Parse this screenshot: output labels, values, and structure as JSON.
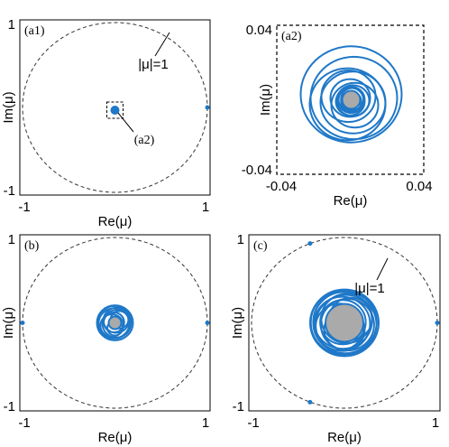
{
  "chart_data": [
    {
      "type": "scatter",
      "panel_label": "(a1)",
      "xlabel": "Re(μ)",
      "ylabel": "Im(μ)",
      "xlim": [
        -1,
        1
      ],
      "ylim": [
        -1,
        1
      ],
      "xticks": [
        -1,
        1
      ],
      "yticks": [
        -1,
        1
      ],
      "annotations": [
        "|μ|=1",
        "(a2)"
      ],
      "series": [
        {
          "color": "#1f78c8",
          "x": [
            1
          ],
          "y": [
            0
          ]
        }
      ]
    },
    {
      "type": "scatter",
      "panel_label": "(a2)",
      "xlabel": "Re(μ)",
      "ylabel": "Im(μ)",
      "xlim": [
        -0.04,
        0.04
      ],
      "ylim": [
        -0.04,
        0.04
      ],
      "xticks": [
        -0.04,
        0.04
      ],
      "yticks": [
        -0.04,
        0.04
      ],
      "annotations": [],
      "series": []
    },
    {
      "type": "scatter",
      "panel_label": "(b)",
      "xlabel": "Re(μ)",
      "ylabel": "Im(μ)",
      "xlim": [
        -1,
        1
      ],
      "ylim": [
        -1,
        1
      ],
      "xticks": [
        -1,
        1
      ],
      "yticks": [
        -1,
        1
      ],
      "annotations": [],
      "series": [
        {
          "color": "#1f78c8",
          "x": [
            -1,
            1
          ],
          "y": [
            0,
            0
          ]
        }
      ]
    },
    {
      "type": "scatter",
      "panel_label": "(c)",
      "xlabel": "Re(μ)",
      "ylabel": "Im(μ)",
      "xlim": [
        -1,
        1
      ],
      "ylim": [
        -1,
        1
      ],
      "xticks": [
        -1,
        1
      ],
      "yticks": [
        -1,
        1
      ],
      "annotations": [
        "|μ|=1"
      ],
      "series": [
        {
          "color": "#1f78c8",
          "x": [
            1,
            -0.37,
            -0.37
          ],
          "y": [
            0,
            0.93,
            -0.93
          ]
        }
      ]
    }
  ]
}
